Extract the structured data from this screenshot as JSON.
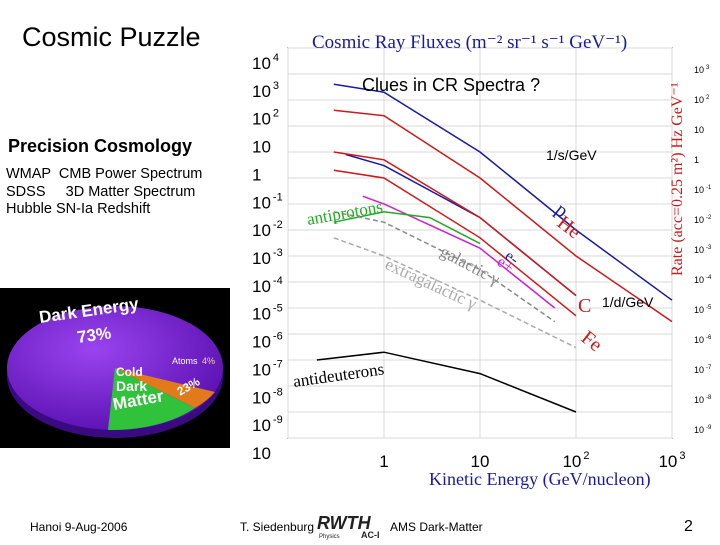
{
  "slide": {
    "title": "Cosmic Puzzle",
    "subtitle": "Precision Cosmology",
    "bullets": [
      "WMAP  CMB Power Spectrum",
      "SDSS     3D Matter Spectrum",
      "Hubble SN-Ia Redshift"
    ],
    "footer_left": "Hanoi  9-Aug-2006",
    "footer_author": "T. Siedenburg",
    "footer_right": "AMS Dark-Matter",
    "page_number": "2",
    "rwth_logo": {
      "text": "RWTH",
      "sub": "Physics",
      "sub2": "AC-I"
    }
  },
  "pie": {
    "dark_energy": "Dark Energy",
    "dark_energy_pct": "73%",
    "dark_matter": [
      "Cold",
      "Dark",
      "Matter"
    ],
    "dark_matter_pct": "23%",
    "atoms": "Atoms",
    "atoms_pct": "4%",
    "colors": {
      "dark_energy": "#7a1fd8",
      "dark_matter": "#2fc23a",
      "atoms": "#e07a1a"
    }
  },
  "chart_data": {
    "type": "line",
    "title": "Cosmic Ray Fluxes (m⁻² sr⁻¹ s⁻¹ GeV⁻¹)",
    "overlay_title": "Clues in CR Spectra ?",
    "xlabel": "Kinetic Energy (GeV/nucleon)",
    "ylabel_right": "Rate (acc=0.25 m²) Hz GeV⁻¹",
    "x_scale": "log",
    "y_scale": "log",
    "xlim": [
      0.1,
      1000
    ],
    "ylim": [
      1e-10,
      100000.0
    ],
    "x_ticks": [
      {
        "base": "1",
        "exp": ""
      },
      {
        "base": "10",
        "exp": ""
      },
      {
        "base": "10",
        "exp": "2"
      },
      {
        "base": "10",
        "exp": "3"
      }
    ],
    "y_ticks_left": [
      {
        "base": "10",
        "exp": "4"
      },
      {
        "base": "10",
        "exp": "3"
      },
      {
        "base": "10",
        "exp": "2"
      },
      {
        "base": "10",
        "exp": ""
      },
      {
        "base": "1",
        "exp": ""
      },
      {
        "base": "10",
        "exp": "-1"
      },
      {
        "base": "10",
        "exp": "-2"
      },
      {
        "base": "10",
        "exp": "-3"
      },
      {
        "base": "10",
        "exp": "-4"
      },
      {
        "base": "10",
        "exp": "-5"
      },
      {
        "base": "10",
        "exp": "-6"
      },
      {
        "base": "10",
        "exp": "-7"
      },
      {
        "base": "10",
        "exp": "-8"
      },
      {
        "base": "10",
        "exp": "-9"
      },
      {
        "base": "10",
        "exp": ""
      }
    ],
    "y_ticks_right": [
      {
        "base": "10",
        "exp": "3"
      },
      {
        "base": "10",
        "exp": "2"
      },
      {
        "base": "10",
        "exp": ""
      },
      {
        "base": "1",
        "exp": ""
      },
      {
        "base": "10",
        "exp": "-1"
      },
      {
        "base": "10",
        "exp": "-2"
      },
      {
        "base": "10",
        "exp": "-3"
      },
      {
        "base": "10",
        "exp": "-4"
      },
      {
        "base": "10",
        "exp": "-5"
      },
      {
        "base": "10",
        "exp": "-6"
      },
      {
        "base": "10",
        "exp": "-7"
      },
      {
        "base": "10",
        "exp": "-8"
      },
      {
        "base": "10",
        "exp": "-9"
      }
    ],
    "rate_annotations": [
      "1/s/GeV",
      "1/d/GeV"
    ],
    "series": [
      {
        "name": "p",
        "color": "#1a1aa0",
        "points": [
          [
            0.3,
            4000
          ],
          [
            1,
            2000
          ],
          [
            10,
            10
          ],
          [
            100,
            0.01
          ],
          [
            1000,
            2e-05
          ]
        ]
      },
      {
        "name": "He",
        "color": "#cc1a1a",
        "points": [
          [
            0.3,
            400
          ],
          [
            1,
            250
          ],
          [
            10,
            1
          ],
          [
            100,
            0.001
          ],
          [
            1000,
            3e-06
          ]
        ]
      },
      {
        "name": "e-",
        "color": "#1a1aa0",
        "points": [
          [
            0.4,
            8
          ],
          [
            1,
            3
          ],
          [
            10,
            0.03
          ],
          [
            100,
            3e-05
          ]
        ]
      },
      {
        "name": "e+",
        "color": "#cc22cc",
        "points": [
          [
            0.6,
            0.2
          ],
          [
            1,
            0.1
          ],
          [
            10,
            0.002
          ],
          [
            60,
            1e-05
          ]
        ]
      },
      {
        "name": "antiprotons",
        "color": "#22aa22",
        "points": [
          [
            0.3,
            0.02
          ],
          [
            1,
            0.05
          ],
          [
            3,
            0.03
          ],
          [
            10,
            0.003
          ]
        ]
      },
      {
        "name": "galactic γ",
        "color": "#888888",
        "points": [
          [
            0.3,
            0.05
          ],
          [
            1,
            0.02
          ],
          [
            10,
            0.0003
          ],
          [
            60,
            3e-06
          ]
        ]
      },
      {
        "name": "extragalactic γ",
        "color": "#aaaaaa",
        "points": [
          [
            0.3,
            0.005
          ],
          [
            1,
            0.001
          ],
          [
            10,
            2e-05
          ],
          [
            100,
            3e-07
          ]
        ]
      },
      {
        "name": "C",
        "color": "#cc1a1a",
        "points": [
          [
            0.3,
            10
          ],
          [
            1,
            5
          ],
          [
            10,
            0.03
          ],
          [
            100,
            3e-05
          ]
        ]
      },
      {
        "name": "Fe",
        "color": "#cc1a1a",
        "points": [
          [
            0.3,
            2
          ],
          [
            1,
            1
          ],
          [
            10,
            0.005
          ],
          [
            100,
            5e-06
          ]
        ]
      },
      {
        "name": "antideuterons",
        "color": "#000000",
        "points": [
          [
            0.2,
            1e-07
          ],
          [
            1,
            2e-07
          ],
          [
            10,
            3e-08
          ],
          [
            100,
            1e-09
          ]
        ]
      }
    ]
  }
}
